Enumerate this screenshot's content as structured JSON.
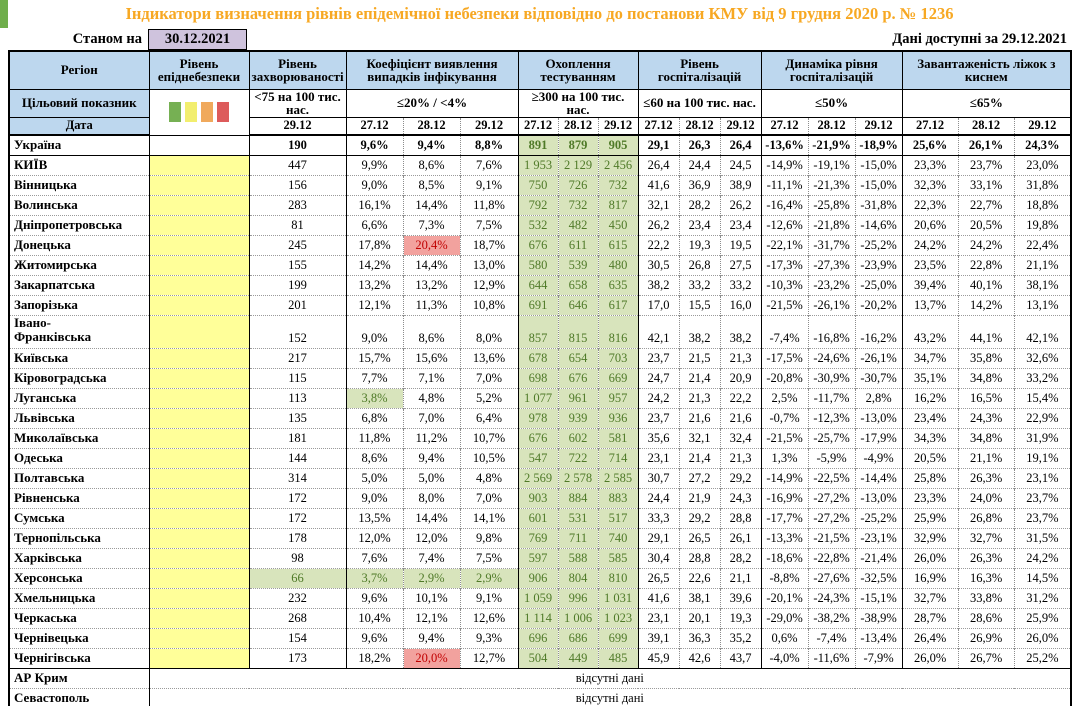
{
  "title": "Індикатори визначення рівнів епідемічної небезпеки відповідно до постанови КМУ від 9 грудня 2020 р. № 1236",
  "as_of": {
    "label": "Станом на",
    "date": "30.12.2021"
  },
  "data_available": {
    "label": "Дані доступні за",
    "date": "29.12.2021"
  },
  "no_data_text": "відсутні дані",
  "colors": {
    "header_bg": "#bdd7ee",
    "asof_box_bg": "#cfc3dd",
    "epid_yellow": "#ffff99",
    "test_bg": "#d8e4bc",
    "test_text": "#4f7a28",
    "red_bg": "#f2a29e",
    "red_text": "#c00000",
    "title_orange": "#f7a823",
    "accent_green": "#6fae4b"
  },
  "columns": {
    "region": {
      "header": "Регіон",
      "target_label": "Цільовий показник",
      "date_label": "Дата"
    },
    "groups": [
      {
        "id": "epidlevel",
        "header": "Рівень епіднебезпеки",
        "target": "",
        "dates": [],
        "legend_colors": [
          "#76b053",
          "#f2ee6e",
          "#f0a95c",
          "#dd5b5b"
        ]
      },
      {
        "id": "incidence",
        "header": "Рівень захворюваності",
        "target": "<75 на 100 тис. нас.",
        "dates": [
          "29.12"
        ]
      },
      {
        "id": "detection",
        "header": "Коефіцієнт виявлення випадків інфікування",
        "target": "≤20% / <4%",
        "dates": [
          "27.12",
          "28.12",
          "29.12"
        ]
      },
      {
        "id": "testing",
        "header": "Охоплення тестуванням",
        "target": "≥300 на 100 тис. нас.",
        "dates": [
          "27.12",
          "28.12",
          "29.12"
        ]
      },
      {
        "id": "hospital_level",
        "header": "Рівень госпіталізацій",
        "target": "≤60 на 100 тис. нас.",
        "dates": [
          "27.12",
          "28.12",
          "29.12"
        ]
      },
      {
        "id": "hospital_dynamics",
        "header": "Динаміка рівня госпіталізацій",
        "target": "≤50%",
        "dates": [
          "27.12",
          "28.12",
          "29.12"
        ]
      },
      {
        "id": "oxygen_beds",
        "header": "Завантаженість ліжок з киснем",
        "target": "≤65%",
        "dates": [
          "27.12",
          "28.12",
          "29.12"
        ]
      }
    ]
  },
  "rows": [
    {
      "region": "Україна",
      "bold": true,
      "epid_level": "",
      "incidence": "190",
      "detection": [
        "9,6%",
        "9,4%",
        "8,8%"
      ],
      "testing": [
        "891",
        "879",
        "905"
      ],
      "hospital_level": [
        "29,1",
        "26,3",
        "26,4"
      ],
      "hospital_dynamics": [
        "-13,6%",
        "-21,9%",
        "-18,9%"
      ],
      "oxygen_beds": [
        "25,6%",
        "26,1%",
        "24,3%"
      ]
    },
    {
      "region": "КИЇВ",
      "solid_top": true,
      "epid_level": "yellow",
      "incidence": "447",
      "detection": [
        "9,9%",
        "8,6%",
        "7,6%"
      ],
      "testing": [
        "1 953",
        "2 129",
        "2 456"
      ],
      "hospital_level": [
        "26,4",
        "24,4",
        "24,5"
      ],
      "hospital_dynamics": [
        "-14,9%",
        "-19,1%",
        "-15,0%"
      ],
      "oxygen_beds": [
        "23,3%",
        "23,7%",
        "23,0%"
      ]
    },
    {
      "region": "Вінницька",
      "epid_level": "yellow",
      "incidence": "156",
      "detection": [
        "9,0%",
        "8,5%",
        "9,1%"
      ],
      "testing": [
        "750",
        "726",
        "732"
      ],
      "hospital_level": [
        "41,6",
        "36,9",
        "38,9"
      ],
      "hospital_dynamics": [
        "-11,1%",
        "-21,3%",
        "-15,0%"
      ],
      "oxygen_beds": [
        "32,3%",
        "33,1%",
        "31,8%"
      ]
    },
    {
      "region": "Волинська",
      "epid_level": "yellow",
      "incidence": "283",
      "detection": [
        "16,1%",
        "14,4%",
        "11,8%"
      ],
      "testing": [
        "792",
        "732",
        "817"
      ],
      "hospital_level": [
        "32,1",
        "28,2",
        "26,2"
      ],
      "hospital_dynamics": [
        "-16,4%",
        "-25,8%",
        "-31,8%"
      ],
      "oxygen_beds": [
        "22,3%",
        "22,7%",
        "18,8%"
      ]
    },
    {
      "region": "Дніпропетровська",
      "epid_level": "yellow",
      "incidence": "81",
      "detection": [
        "6,6%",
        "7,3%",
        "7,5%"
      ],
      "testing": [
        "532",
        "482",
        "450"
      ],
      "hospital_level": [
        "26,2",
        "23,4",
        "23,4"
      ],
      "hospital_dynamics": [
        "-12,6%",
        "-21,8%",
        "-14,6%"
      ],
      "oxygen_beds": [
        "20,6%",
        "20,5%",
        "19,8%"
      ]
    },
    {
      "region": "Донецька",
      "epid_level": "yellow",
      "incidence": "245",
      "detection": [
        "17,8%",
        "20,4%",
        "18,7%"
      ],
      "hl": {
        "detection.1": "red"
      },
      "testing": [
        "676",
        "611",
        "615"
      ],
      "hospital_level": [
        "22,2",
        "19,3",
        "19,5"
      ],
      "hospital_dynamics": [
        "-22,1%",
        "-31,7%",
        "-25,2%"
      ],
      "oxygen_beds": [
        "24,2%",
        "24,2%",
        "22,4%"
      ]
    },
    {
      "region": "Житомирська",
      "epid_level": "yellow",
      "incidence": "155",
      "detection": [
        "14,2%",
        "14,4%",
        "13,0%"
      ],
      "testing": [
        "580",
        "539",
        "480"
      ],
      "hospital_level": [
        "30,5",
        "26,8",
        "27,5"
      ],
      "hospital_dynamics": [
        "-17,3%",
        "-27,3%",
        "-23,9%"
      ],
      "oxygen_beds": [
        "23,5%",
        "22,8%",
        "21,1%"
      ]
    },
    {
      "region": "Закарпатська",
      "epid_level": "yellow",
      "incidence": "199",
      "detection": [
        "13,2%",
        "13,2%",
        "12,9%"
      ],
      "testing": [
        "644",
        "658",
        "635"
      ],
      "hospital_level": [
        "38,2",
        "33,2",
        "33,2"
      ],
      "hospital_dynamics": [
        "-10,3%",
        "-23,2%",
        "-25,0%"
      ],
      "oxygen_beds": [
        "39,4%",
        "40,1%",
        "38,1%"
      ]
    },
    {
      "region": "Запорізька",
      "epid_level": "yellow",
      "incidence": "201",
      "detection": [
        "12,1%",
        "11,3%",
        "10,8%"
      ],
      "testing": [
        "691",
        "646",
        "617"
      ],
      "hospital_level": [
        "17,0",
        "15,5",
        "16,0"
      ],
      "hospital_dynamics": [
        "-21,5%",
        "-26,1%",
        "-20,2%"
      ],
      "oxygen_beds": [
        "13,7%",
        "14,2%",
        "13,1%"
      ]
    },
    {
      "region": "Івано-\nФранківська",
      "tall": true,
      "epid_level": "yellow",
      "incidence": "152",
      "detection": [
        "9,0%",
        "8,6%",
        "8,0%"
      ],
      "testing": [
        "857",
        "815",
        "816"
      ],
      "hospital_level": [
        "42,1",
        "38,2",
        "38,2"
      ],
      "hospital_dynamics": [
        "-7,4%",
        "-16,8%",
        "-16,2%"
      ],
      "oxygen_beds": [
        "43,2%",
        "44,1%",
        "42,1%"
      ]
    },
    {
      "region": "Київська",
      "epid_level": "yellow",
      "incidence": "217",
      "detection": [
        "15,7%",
        "15,6%",
        "13,6%"
      ],
      "testing": [
        "678",
        "654",
        "703"
      ],
      "hospital_level": [
        "23,7",
        "21,5",
        "21,3"
      ],
      "hospital_dynamics": [
        "-17,5%",
        "-24,6%",
        "-26,1%"
      ],
      "oxygen_beds": [
        "34,7%",
        "35,8%",
        "32,6%"
      ]
    },
    {
      "region": "Кіровоградська",
      "epid_level": "yellow",
      "incidence": "115",
      "detection": [
        "7,7%",
        "7,1%",
        "7,0%"
      ],
      "testing": [
        "698",
        "676",
        "669"
      ],
      "hospital_level": [
        "24,7",
        "21,4",
        "20,9"
      ],
      "hospital_dynamics": [
        "-20,8%",
        "-30,9%",
        "-30,7%"
      ],
      "oxygen_beds": [
        "35,1%",
        "34,8%",
        "33,2%"
      ]
    },
    {
      "region": "Луганська",
      "epid_level": "yellow",
      "incidence": "113",
      "detection": [
        "3,8%",
        "4,8%",
        "5,2%"
      ],
      "hl": {
        "detection.0": "green"
      },
      "testing": [
        "1 077",
        "961",
        "957"
      ],
      "hospital_level": [
        "24,2",
        "21,3",
        "22,2"
      ],
      "hospital_dynamics": [
        "2,5%",
        "-11,7%",
        "2,8%"
      ],
      "oxygen_beds": [
        "16,2%",
        "16,5%",
        "15,4%"
      ]
    },
    {
      "region": "Львівська",
      "epid_level": "yellow",
      "incidence": "135",
      "detection": [
        "6,8%",
        "7,0%",
        "6,4%"
      ],
      "testing": [
        "978",
        "939",
        "936"
      ],
      "hospital_level": [
        "23,7",
        "21,6",
        "21,6"
      ],
      "hospital_dynamics": [
        "-0,7%",
        "-12,3%",
        "-13,0%"
      ],
      "oxygen_beds": [
        "23,4%",
        "24,3%",
        "22,9%"
      ]
    },
    {
      "region": "Миколаївська",
      "epid_level": "yellow",
      "incidence": "181",
      "detection": [
        "11,8%",
        "11,2%",
        "10,7%"
      ],
      "testing": [
        "676",
        "602",
        "581"
      ],
      "hospital_level": [
        "35,6",
        "32,1",
        "32,4"
      ],
      "hospital_dynamics": [
        "-21,5%",
        "-25,7%",
        "-17,9%"
      ],
      "oxygen_beds": [
        "34,3%",
        "34,8%",
        "31,9%"
      ]
    },
    {
      "region": "Одеська",
      "epid_level": "yellow",
      "incidence": "144",
      "detection": [
        "8,6%",
        "9,4%",
        "10,5%"
      ],
      "testing": [
        "547",
        "722",
        "714"
      ],
      "hospital_level": [
        "23,1",
        "21,4",
        "21,3"
      ],
      "hospital_dynamics": [
        "1,3%",
        "-5,9%",
        "-4,9%"
      ],
      "oxygen_beds": [
        "20,5%",
        "21,1%",
        "19,1%"
      ]
    },
    {
      "region": "Полтавська",
      "epid_level": "yellow",
      "incidence": "314",
      "detection": [
        "5,0%",
        "5,0%",
        "4,8%"
      ],
      "testing": [
        "2 569",
        "2 578",
        "2 585"
      ],
      "hospital_level": [
        "30,7",
        "27,2",
        "29,2"
      ],
      "hospital_dynamics": [
        "-14,9%",
        "-22,5%",
        "-14,4%"
      ],
      "oxygen_beds": [
        "25,8%",
        "26,3%",
        "23,1%"
      ]
    },
    {
      "region": "Рівненська",
      "epid_level": "yellow",
      "incidence": "172",
      "detection": [
        "9,0%",
        "8,0%",
        "7,0%"
      ],
      "testing": [
        "903",
        "884",
        "883"
      ],
      "hospital_level": [
        "24,4",
        "21,9",
        "24,3"
      ],
      "hospital_dynamics": [
        "-16,9%",
        "-27,2%",
        "-13,0%"
      ],
      "oxygen_beds": [
        "23,3%",
        "24,0%",
        "23,7%"
      ]
    },
    {
      "region": "Сумська",
      "epid_level": "yellow",
      "incidence": "172",
      "detection": [
        "13,5%",
        "14,4%",
        "14,1%"
      ],
      "testing": [
        "601",
        "531",
        "517"
      ],
      "hospital_level": [
        "33,3",
        "29,2",
        "28,8"
      ],
      "hospital_dynamics": [
        "-17,7%",
        "-27,2%",
        "-25,2%"
      ],
      "oxygen_beds": [
        "25,9%",
        "26,8%",
        "23,7%"
      ]
    },
    {
      "region": "Тернопільська",
      "epid_level": "yellow",
      "incidence": "178",
      "detection": [
        "12,0%",
        "12,0%",
        "9,8%"
      ],
      "testing": [
        "769",
        "711",
        "740"
      ],
      "hospital_level": [
        "29,1",
        "26,5",
        "26,1"
      ],
      "hospital_dynamics": [
        "-13,3%",
        "-21,5%",
        "-23,1%"
      ],
      "oxygen_beds": [
        "32,9%",
        "32,7%",
        "31,5%"
      ]
    },
    {
      "region": "Харківська",
      "epid_level": "yellow",
      "incidence": "98",
      "detection": [
        "7,6%",
        "7,4%",
        "7,5%"
      ],
      "testing": [
        "597",
        "588",
        "585"
      ],
      "hospital_level": [
        "30,4",
        "28,8",
        "28,2"
      ],
      "hospital_dynamics": [
        "-18,6%",
        "-22,8%",
        "-21,4%"
      ],
      "oxygen_beds": [
        "26,0%",
        "26,3%",
        "24,2%"
      ]
    },
    {
      "region": "Херсонська",
      "epid_level": "yellow",
      "incidence": "66",
      "detection": [
        "3,7%",
        "2,9%",
        "2,9%"
      ],
      "hl": {
        "incidence.0": "green",
        "detection.0": "green",
        "detection.1": "green",
        "detection.2": "green"
      },
      "testing": [
        "906",
        "804",
        "810"
      ],
      "hospital_level": [
        "26,5",
        "22,6",
        "21,1"
      ],
      "hospital_dynamics": [
        "-8,8%",
        "-27,6%",
        "-32,5%"
      ],
      "oxygen_beds": [
        "16,9%",
        "16,3%",
        "14,5%"
      ]
    },
    {
      "region": "Хмельницька",
      "epid_level": "yellow",
      "incidence": "232",
      "detection": [
        "9,6%",
        "10,1%",
        "9,1%"
      ],
      "testing": [
        "1 059",
        "996",
        "1 031"
      ],
      "hospital_level": [
        "41,6",
        "38,1",
        "39,6"
      ],
      "hospital_dynamics": [
        "-20,1%",
        "-24,3%",
        "-15,1%"
      ],
      "oxygen_beds": [
        "32,7%",
        "33,8%",
        "31,2%"
      ]
    },
    {
      "region": "Черкаська",
      "epid_level": "yellow",
      "incidence": "268",
      "detection": [
        "10,4%",
        "12,1%",
        "12,6%"
      ],
      "testing": [
        "1 114",
        "1 006",
        "1 023"
      ],
      "hospital_level": [
        "23,1",
        "20,1",
        "19,3"
      ],
      "hospital_dynamics": [
        "-29,0%",
        "-38,2%",
        "-38,9%"
      ],
      "oxygen_beds": [
        "28,7%",
        "28,6%",
        "25,9%"
      ]
    },
    {
      "region": "Чернівецька",
      "epid_level": "yellow",
      "incidence": "154",
      "detection": [
        "9,6%",
        "9,4%",
        "9,3%"
      ],
      "testing": [
        "696",
        "686",
        "699"
      ],
      "hospital_level": [
        "39,1",
        "36,3",
        "35,2"
      ],
      "hospital_dynamics": [
        "0,6%",
        "-7,4%",
        "-13,4%"
      ],
      "oxygen_beds": [
        "26,4%",
        "26,9%",
        "26,0%"
      ]
    },
    {
      "region": "Чернігівська",
      "epid_level": "yellow",
      "incidence": "173",
      "detection": [
        "18,2%",
        "20,0%",
        "12,7%"
      ],
      "hl": {
        "detection.1": "red"
      },
      "testing": [
        "504",
        "449",
        "485"
      ],
      "hospital_level": [
        "45,9",
        "42,6",
        "43,7"
      ],
      "hospital_dynamics": [
        "-4,0%",
        "-11,6%",
        "-7,9%"
      ],
      "oxygen_beds": [
        "26,0%",
        "26,7%",
        "25,2%"
      ]
    },
    {
      "region": "АР Крим",
      "no_data": true,
      "solid_top": true
    },
    {
      "region": "Севастополь",
      "no_data": true
    }
  ]
}
